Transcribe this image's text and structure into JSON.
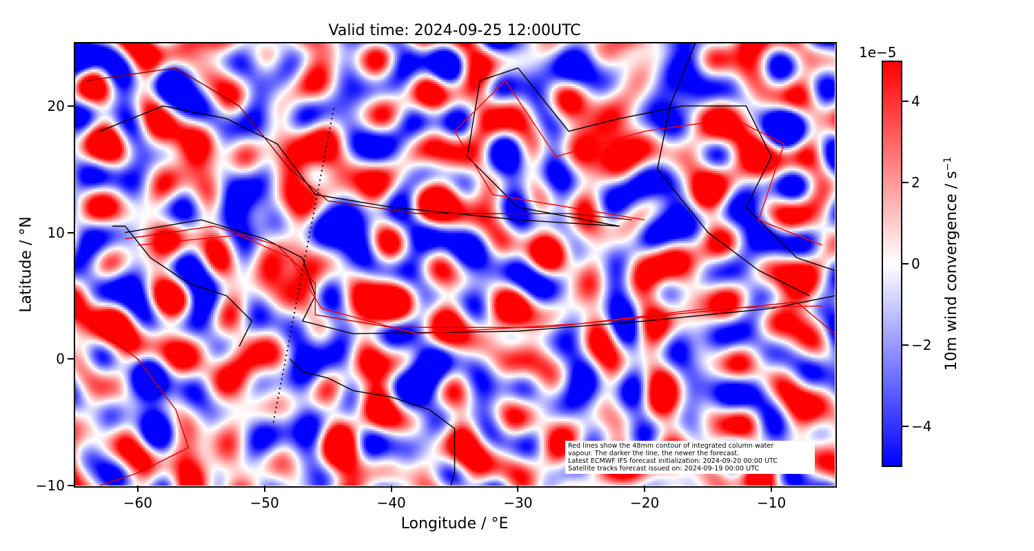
{
  "chart_data": {
    "type": "heatmap",
    "title": "Valid time: 2024-09-25 12:00UTC",
    "xlabel": "Longitude / °E",
    "ylabel": "Latitude / °N",
    "xlim": [
      -65,
      -5
    ],
    "ylim": [
      -10,
      25
    ],
    "xticks": [
      -60,
      -50,
      -40,
      -30,
      -20,
      -10
    ],
    "yticks": [
      -10,
      0,
      10,
      20
    ],
    "xtick_labels": [
      "−60",
      "−50",
      "−40",
      "−30",
      "−20",
      "−10"
    ],
    "ytick_labels": [
      "−10",
      "0",
      "10",
      "20"
    ],
    "colormap": "bwr",
    "colors": {
      "low": "#0000ff",
      "mid": "#ffffff",
      "high": "#ff0000"
    },
    "colorbar": {
      "label": "10m wind convergence / s",
      "label_superscript": "−1",
      "exponent": "1e−5",
      "range": [
        -5,
        5
      ],
      "ticks": [
        -4,
        -2,
        0,
        2,
        4
      ],
      "tick_labels": [
        "−4",
        "−2",
        "0",
        "2",
        "4"
      ]
    },
    "satellite_track": {
      "style": "dotted",
      "start": [
        -49.3,
        -5
      ],
      "end": [
        -44.5,
        20
      ]
    },
    "annotation": [
      "Red lines show the 48mm contour of integrated column water",
      "vapour. The darker the line, the newer the forecast.",
      "Latest ECMWF IFS forecast initialization: 2024-09-20 00:00 UTC",
      "Satellite tracks forecast issued on: 2024-09-19 00:00 UTC"
    ]
  }
}
